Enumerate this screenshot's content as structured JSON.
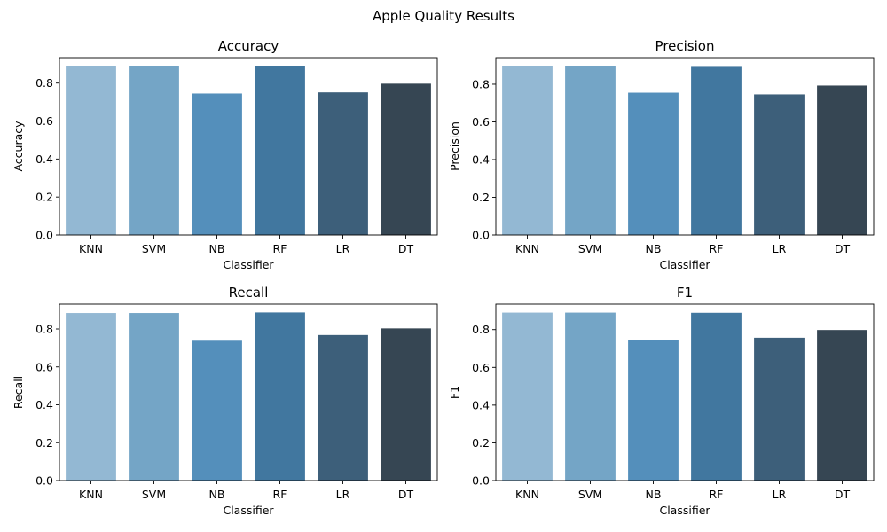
{
  "figure": {
    "title": "Apple Quality Results"
  },
  "palette": [
    "#93b8d3",
    "#74a5c6",
    "#548fbb",
    "#41779f",
    "#3d5f7a",
    "#364653"
  ],
  "chart_data": [
    {
      "type": "bar",
      "title": "Accuracy",
      "xlabel": "Classifier",
      "ylabel": "Accuracy",
      "categories": [
        "KNN",
        "SVM",
        "NB",
        "RF",
        "LR",
        "DT"
      ],
      "values": [
        0.889,
        0.889,
        0.745,
        0.889,
        0.751,
        0.797
      ],
      "ylim": [
        0,
        0.934
      ],
      "yticks": [
        "0.0",
        "0.2",
        "0.4",
        "0.6",
        "0.8"
      ]
    },
    {
      "type": "bar",
      "title": "Precision",
      "xlabel": "Classifier",
      "ylabel": "Precision",
      "categories": [
        "KNN",
        "SVM",
        "NB",
        "RF",
        "LR",
        "DT"
      ],
      "values": [
        0.896,
        0.896,
        0.755,
        0.892,
        0.746,
        0.793
      ],
      "ylim": [
        0,
        0.941
      ],
      "yticks": [
        "0.0",
        "0.2",
        "0.4",
        "0.6",
        "0.8"
      ]
    },
    {
      "type": "bar",
      "title": "Recall",
      "xlabel": "Classifier",
      "ylabel": "Recall",
      "categories": [
        "KNN",
        "SVM",
        "NB",
        "RF",
        "LR",
        "DT"
      ],
      "values": [
        0.884,
        0.884,
        0.738,
        0.887,
        0.768,
        0.803
      ],
      "ylim": [
        0,
        0.931
      ],
      "yticks": [
        "0.0",
        "0.2",
        "0.4",
        "0.6",
        "0.8"
      ]
    },
    {
      "type": "bar",
      "title": "F1",
      "xlabel": "Classifier",
      "ylabel": "F1",
      "categories": [
        "KNN",
        "SVM",
        "NB",
        "RF",
        "LR",
        "DT"
      ],
      "values": [
        0.89,
        0.89,
        0.747,
        0.889,
        0.757,
        0.798
      ],
      "ylim": [
        0,
        0.935
      ],
      "yticks": [
        "0.0",
        "0.2",
        "0.4",
        "0.6",
        "0.8"
      ]
    }
  ]
}
